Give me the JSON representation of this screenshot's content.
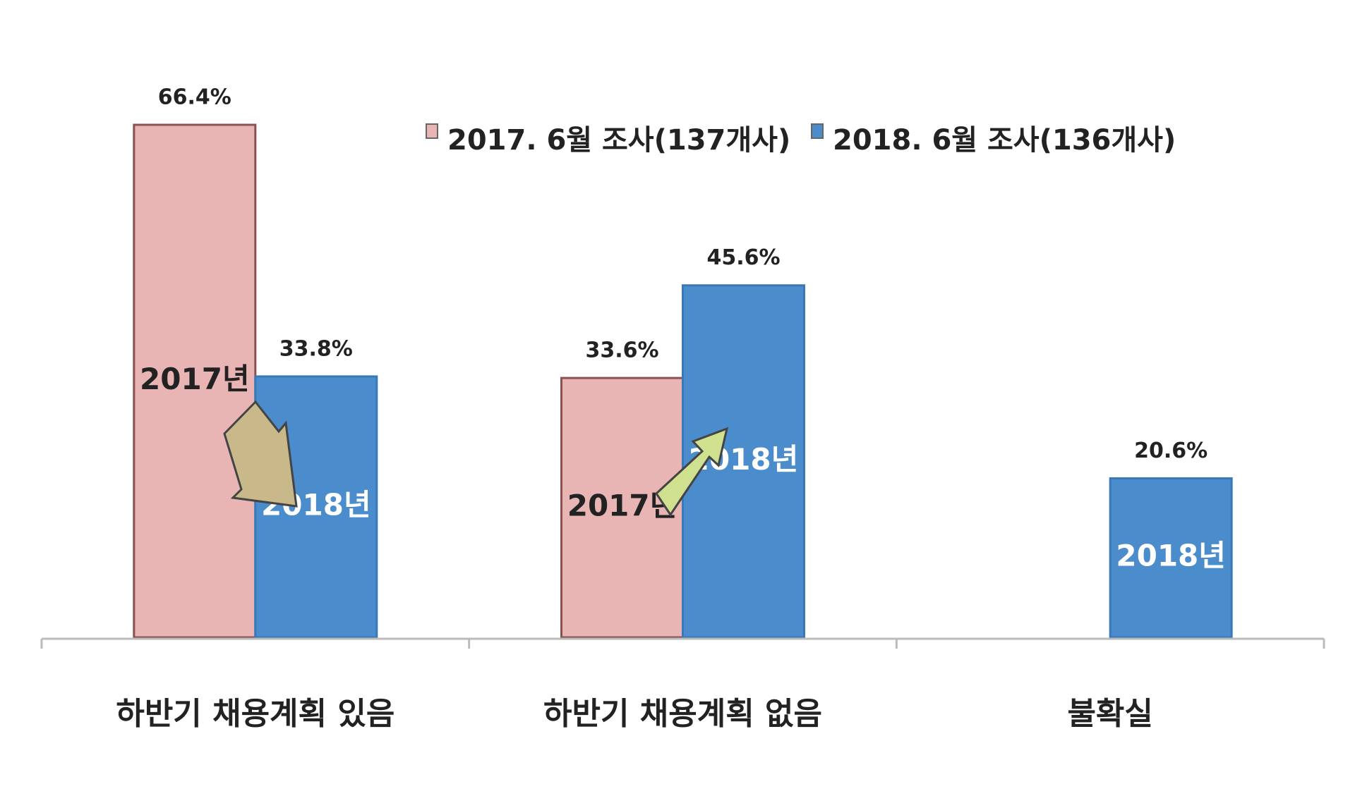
{
  "chart_data": {
    "type": "bar",
    "categories": [
      "하반기 채용계획 있음",
      "하반기 채용계획 없음",
      "불확실"
    ],
    "series": [
      {
        "name": "2017. 6월 조사(137개사)",
        "color": "#e8b4b4",
        "inner_label": "2017년",
        "values": [
          66.4,
          33.6,
          null
        ],
        "value_labels": [
          "66.4%",
          "33.6%",
          null
        ]
      },
      {
        "name": "2018. 6월 조사(136개사)",
        "color": "#4a8ccc",
        "inner_label": "2018년",
        "values": [
          33.8,
          45.6,
          20.6
        ],
        "value_labels": [
          "33.8%",
          "45.6%",
          "20.6%"
        ]
      }
    ]
  }
}
